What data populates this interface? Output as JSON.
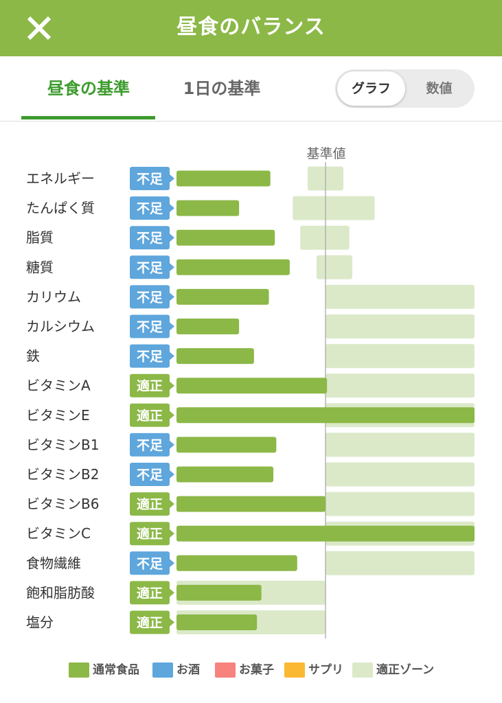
{
  "header": {
    "title": "昼食のバランス",
    "close_icon": "close-icon"
  },
  "tabs": [
    {
      "label": "昼食の基準",
      "active": true
    },
    {
      "label": "1日の基準",
      "active": false
    }
  ],
  "view_toggle": {
    "options": [
      "グラフ",
      "数値"
    ],
    "selected": "グラフ"
  },
  "colors": {
    "header": "#8cb847",
    "normal_food": "#8cb847",
    "alcohol": "#5ea6dc",
    "snack": "#f7827e",
    "supplement": "#fbb832",
    "zone": "#dbe9c9",
    "status_ok": "#8cb847",
    "status_low": "#5ea6dc"
  },
  "chart_data": {
    "type": "bar",
    "orientation": "horizontal",
    "reference_label": "基準値",
    "reference_value": 100,
    "x_unit": "% of 基準値",
    "items": [
      {
        "name": "エネルギー",
        "status": "不足",
        "value": 63,
        "zone": [
          88,
          112
        ]
      },
      {
        "name": "たんぱく質",
        "status": "不足",
        "value": 42,
        "zone": [
          78,
          133
        ]
      },
      {
        "name": "脂質",
        "status": "不足",
        "value": 66,
        "zone": [
          83,
          116
        ]
      },
      {
        "name": "糖質",
        "status": "不足",
        "value": 76,
        "zone": [
          94,
          118
        ]
      },
      {
        "name": "カリウム",
        "status": "不足",
        "value": 62,
        "zone": [
          100,
          200
        ]
      },
      {
        "name": "カルシウム",
        "status": "不足",
        "value": 42,
        "zone": [
          100,
          200
        ]
      },
      {
        "name": "鉄",
        "status": "不足",
        "value": 52,
        "zone": [
          100,
          200
        ]
      },
      {
        "name": "ビタミンA",
        "status": "適正",
        "value": 101,
        "zone": [
          100,
          200
        ]
      },
      {
        "name": "ビタミンE",
        "status": "適正",
        "value": 200,
        "zone": [
          100,
          200
        ]
      },
      {
        "name": "ビタミンB1",
        "status": "不足",
        "value": 67,
        "zone": [
          100,
          200
        ]
      },
      {
        "name": "ビタミンB2",
        "status": "不足",
        "value": 65,
        "zone": [
          100,
          200
        ]
      },
      {
        "name": "ビタミンB6",
        "status": "適正",
        "value": 100,
        "zone": [
          100,
          200
        ]
      },
      {
        "name": "ビタミンC",
        "status": "適正",
        "value": 200,
        "zone": [
          100,
          200
        ]
      },
      {
        "name": "食物繊維",
        "status": "不足",
        "value": 81,
        "zone": [
          100,
          200
        ]
      },
      {
        "name": "飽和脂肪酸",
        "status": "適正",
        "value": 57,
        "zone": [
          0,
          100
        ]
      },
      {
        "name": "塩分",
        "status": "適正",
        "value": 54,
        "zone": [
          0,
          100
        ]
      }
    ],
    "legend": [
      {
        "label": "通常食品",
        "color": "#8cb847"
      },
      {
        "label": "お酒",
        "color": "#5ea6dc"
      },
      {
        "label": "お菓子",
        "color": "#f7827e"
      },
      {
        "label": "サプリ",
        "color": "#fbb832"
      },
      {
        "label": "適正ゾーン",
        "color": "#dbe9c9"
      }
    ]
  }
}
